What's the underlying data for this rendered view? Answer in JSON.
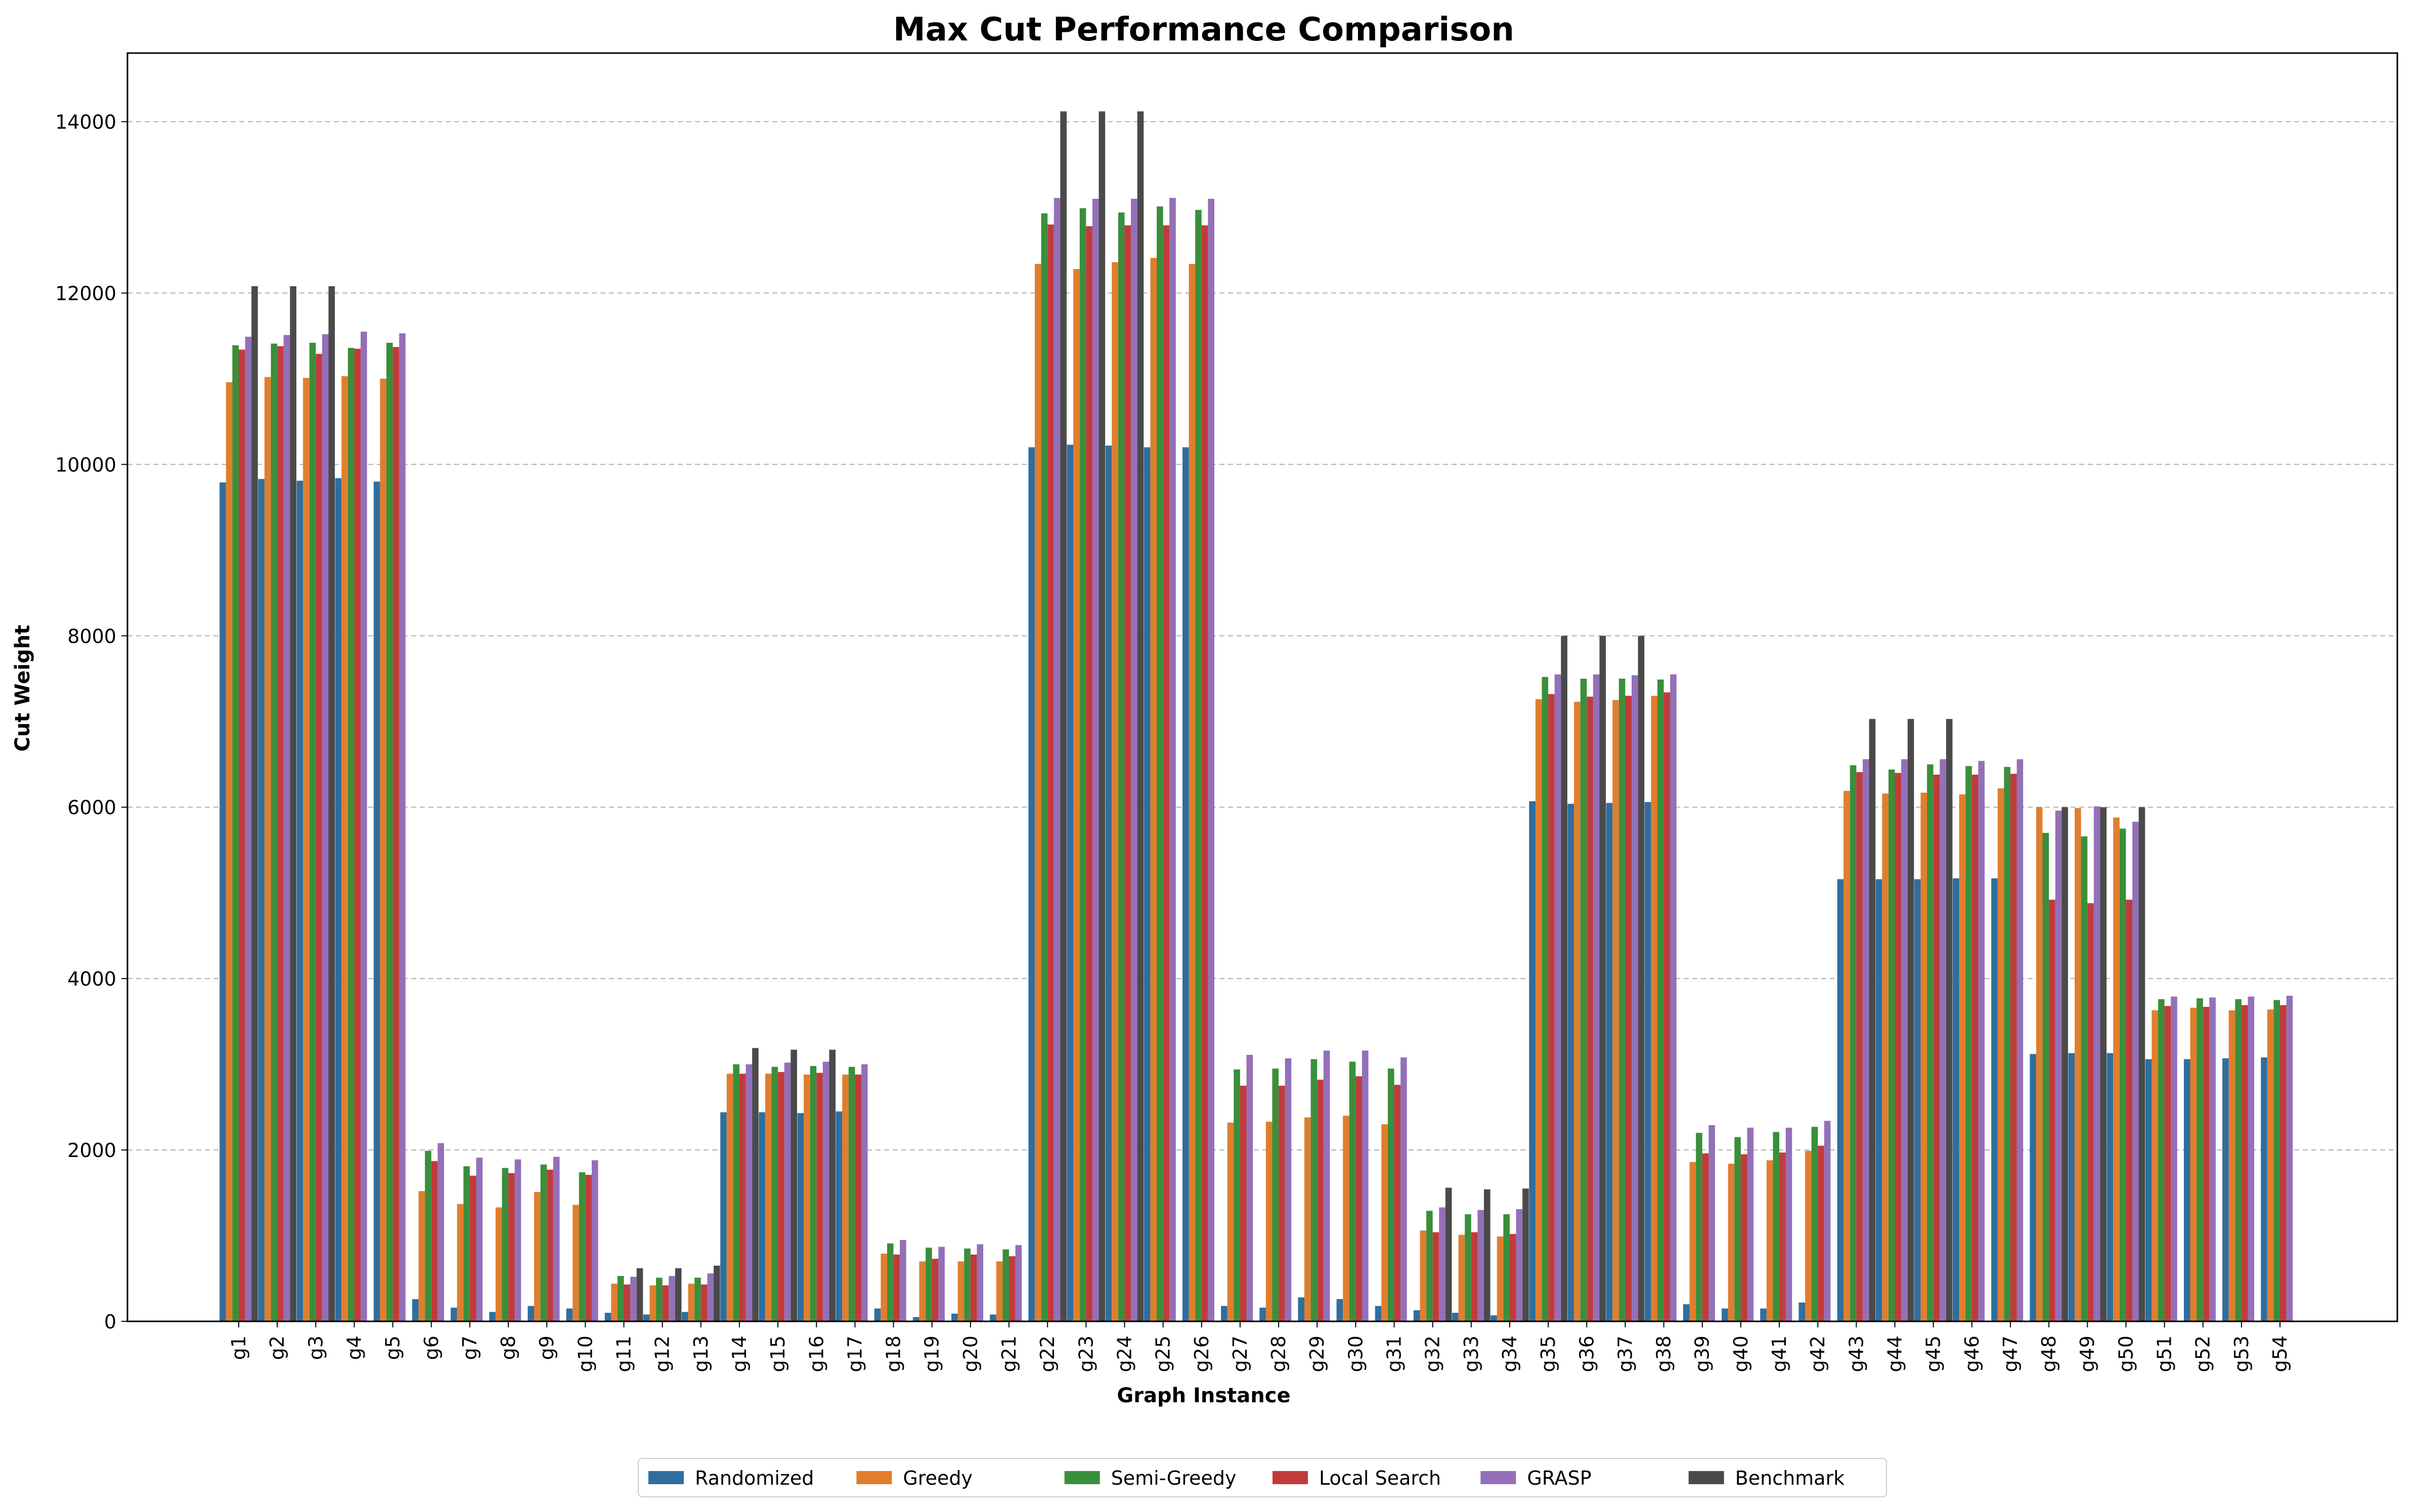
{
  "chart_data": {
    "type": "bar",
    "title": "Max Cut Performance Comparison",
    "xlabel": "Graph Instance",
    "ylabel": "Cut Weight",
    "ylim": [
      0,
      14800
    ],
    "yticks": [
      0,
      2000,
      4000,
      6000,
      8000,
      10000,
      12000,
      14000
    ],
    "grid": "y-dashed",
    "legend_position": "bottom-center",
    "categories": [
      "g1",
      "g2",
      "g3",
      "g4",
      "g5",
      "g6",
      "g7",
      "g8",
      "g9",
      "g10",
      "g11",
      "g12",
      "g13",
      "g14",
      "g15",
      "g16",
      "g17",
      "g18",
      "g19",
      "g20",
      "g21",
      "g22",
      "g23",
      "g24",
      "g25",
      "g26",
      "g27",
      "g28",
      "g29",
      "g30",
      "g31",
      "g32",
      "g33",
      "g34",
      "g35",
      "g36",
      "g37",
      "g38",
      "g39",
      "g40",
      "g41",
      "g42",
      "g43",
      "g44",
      "g45",
      "g46",
      "g47",
      "g48",
      "g49",
      "g50",
      "g51",
      "g52",
      "g53",
      "g54"
    ],
    "series": [
      {
        "name": "Randomized",
        "color": "#2f6e9e",
        "values": [
          9790,
          9830,
          9810,
          9840,
          9800,
          260,
          160,
          110,
          180,
          150,
          100,
          80,
          110,
          2440,
          2440,
          2430,
          2450,
          150,
          50,
          90,
          80,
          10200,
          10230,
          10220,
          10200,
          10200,
          180,
          160,
          280,
          260,
          180,
          130,
          100,
          70,
          6070,
          6040,
          6050,
          6060,
          200,
          150,
          150,
          220,
          5160,
          5160,
          5160,
          5170,
          5170,
          3120,
          3130,
          3130,
          3060,
          3060,
          3070,
          3080
        ]
      },
      {
        "name": "Greedy",
        "color": "#e07e2e",
        "values": [
          10960,
          11020,
          11010,
          11030,
          11000,
          1520,
          1370,
          1330,
          1510,
          1360,
          440,
          420,
          440,
          2890,
          2890,
          2880,
          2880,
          790,
          700,
          700,
          700,
          12340,
          12280,
          12360,
          12410,
          12340,
          2320,
          2330,
          2380,
          2400,
          2300,
          1060,
          1010,
          990,
          7260,
          7230,
          7250,
          7300,
          1860,
          1840,
          1880,
          1990,
          6190,
          6160,
          6170,
          6150,
          6220,
          6000,
          5990,
          5880,
          3630,
          3660,
          3630,
          3640
        ]
      },
      {
        "name": "Semi-Greedy",
        "color": "#3a8f3a",
        "values": [
          11390,
          11410,
          11420,
          11360,
          11420,
          1990,
          1810,
          1790,
          1830,
          1740,
          530,
          510,
          510,
          3000,
          2970,
          2980,
          2970,
          910,
          860,
          850,
          840,
          12930,
          12990,
          12940,
          13010,
          12970,
          2940,
          2950,
          3060,
          3030,
          2950,
          1290,
          1250,
          1250,
          7520,
          7500,
          7500,
          7490,
          2200,
          2150,
          2210,
          2270,
          6490,
          6440,
          6500,
          6480,
          6470,
          5700,
          5660,
          5750,
          3760,
          3770,
          3760,
          3750
        ]
      },
      {
        "name": "Local Search",
        "color": "#c23b3b",
        "values": [
          11340,
          11380,
          11290,
          11350,
          11370,
          1870,
          1700,
          1730,
          1770,
          1710,
          430,
          420,
          430,
          2890,
          2910,
          2900,
          2880,
          780,
          730,
          780,
          760,
          12800,
          12780,
          12790,
          12790,
          12790,
          2750,
          2750,
          2820,
          2860,
          2760,
          1040,
          1040,
          1020,
          7320,
          7290,
          7300,
          7340,
          1960,
          1950,
          1970,
          2050,
          6410,
          6400,
          6380,
          6380,
          6390,
          4920,
          4880,
          4920,
          3680,
          3670,
          3690,
          3690
        ]
      },
      {
        "name": "GRASP",
        "color": "#9370b8",
        "values": [
          11490,
          11510,
          11520,
          11550,
          11530,
          2080,
          1910,
          1890,
          1920,
          1880,
          520,
          530,
          560,
          3000,
          3020,
          3030,
          3000,
          950,
          870,
          900,
          890,
          13110,
          13100,
          13100,
          13110,
          13100,
          3110,
          3070,
          3160,
          3160,
          3080,
          1330,
          1300,
          1310,
          7550,
          7550,
          7540,
          7550,
          2290,
          2260,
          2260,
          2340,
          6560,
          6560,
          6560,
          6540,
          6560,
          5960,
          6010,
          5830,
          3790,
          3780,
          3790,
          3800
        ]
      },
      {
        "name": "Benchmark",
        "color": "#4a4a4a",
        "values": [
          12080,
          12080,
          12080,
          null,
          null,
          null,
          null,
          null,
          null,
          null,
          620,
          620,
          650,
          3190,
          3170,
          3170,
          null,
          null,
          null,
          null,
          null,
          14120,
          14120,
          14120,
          null,
          null,
          null,
          null,
          null,
          null,
          null,
          1560,
          1540,
          1550,
          8000,
          8000,
          8000,
          null,
          null,
          null,
          null,
          null,
          7030,
          7030,
          7030,
          null,
          null,
          6000,
          6000,
          6000,
          null,
          null,
          null,
          null
        ]
      }
    ]
  }
}
